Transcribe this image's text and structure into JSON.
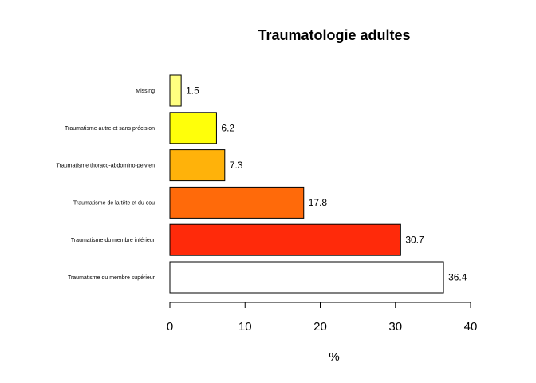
{
  "chart_data": {
    "type": "bar",
    "orientation": "horizontal",
    "title": "Traumatologie adultes",
    "xlabel": "%",
    "ylabel": "",
    "xlim": [
      0,
      40
    ],
    "x_ticks": [
      0,
      10,
      20,
      30,
      40
    ],
    "grid": false,
    "categories": [
      "Traumatisme du membre supérieur",
      "Traumatisme du membre inférieur",
      "Traumatisme de la tête et du cou",
      "Traumatisme thoraco-abdomino-pelvien",
      "Traumatisme autre et sans précision",
      "Missing"
    ],
    "values": [
      36.4,
      30.7,
      17.8,
      7.3,
      6.2,
      1.5
    ],
    "value_labels": [
      "36.4",
      "30.7",
      "17.8",
      "7.3",
      "6.2",
      "1.5"
    ],
    "colors": [
      "#FFFFFF",
      "#FF2A0A",
      "#FF6A0A",
      "#FFB20A",
      "#FFFF0A",
      "#FFFF80"
    ]
  }
}
